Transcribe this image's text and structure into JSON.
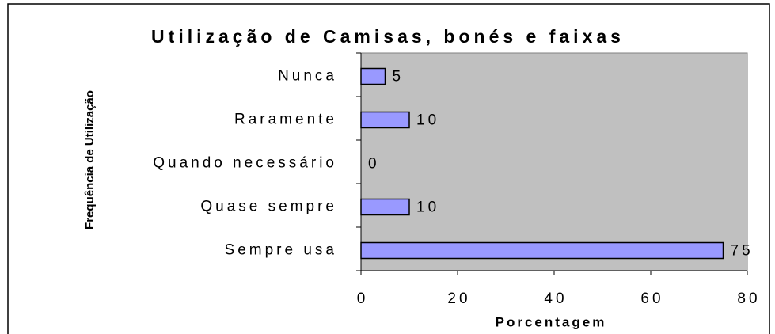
{
  "chart_data": {
    "type": "bar",
    "orientation": "horizontal",
    "title": "Utilização de Camisas, bonés e faixas",
    "xlabel": "Porcentagem",
    "ylabel": "Frequência de Utilização",
    "categories": [
      "Nunca",
      "Raramente",
      "Quando necessário",
      "Quase sempre",
      "Sempre usa"
    ],
    "values": [
      5,
      10,
      0,
      10,
      75
    ],
    "color": "#9999ff",
    "plot_background": "#c0c0c0",
    "xlim": [
      0,
      80
    ],
    "xticks": [
      0,
      20,
      40,
      60,
      80
    ],
    "grid": false
  }
}
